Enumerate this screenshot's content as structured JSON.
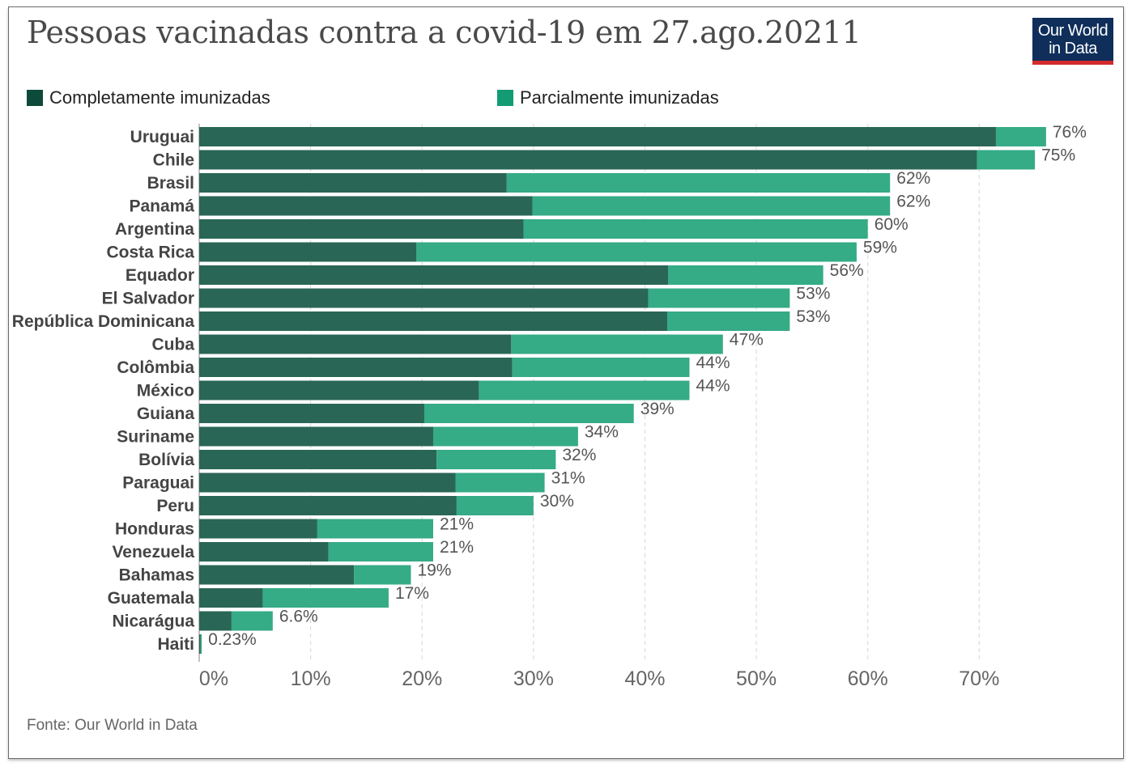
{
  "title": "Pessoas vacinadas contra a covid-19 em 27.ago.20211",
  "logo": {
    "line1": "Our World",
    "line2": "in Data"
  },
  "source": "Fonte: Our World in Data",
  "colors": {
    "fully": "#2a6655",
    "partially": "#35ab86",
    "legend_fully": "#0c4a3a",
    "legend_partially": "#139b74",
    "logo_bg": "#0f2e5a",
    "logo_bar": "#d42b2b"
  },
  "legend": {
    "position": "top",
    "fully": "Completamente imunizadas",
    "partially": "Parcialmente imunizadas"
  },
  "chart_data": {
    "type": "bar",
    "orientation": "horizontal",
    "stacked": true,
    "categories": [
      "Uruguai",
      "Chile",
      "Brasil",
      "Panamá",
      "Argentina",
      "Costa Rica",
      "Equador",
      "El Salvador",
      "República Dominicana",
      "Cuba",
      "Colômbia",
      "México",
      "Guiana",
      "Suriname",
      "Bolívia",
      "Paraguai",
      "Peru",
      "Honduras",
      "Venezuela",
      "Bahamas",
      "Guatemala",
      "Nicarágua",
      "Haiti"
    ],
    "series": [
      {
        "name": "Completamente imunizadas",
        "values": [
          71.5,
          69.8,
          27.6,
          29.9,
          29.1,
          19.5,
          42.1,
          40.3,
          42.0,
          28.0,
          28.1,
          25.1,
          20.2,
          21.0,
          21.3,
          23.0,
          23.1,
          10.6,
          11.6,
          13.9,
          5.7,
          2.9,
          0.13
        ]
      },
      {
        "name": "Parcialmente imunizadas",
        "values": [
          4.5,
          5.2,
          34.4,
          32.1,
          30.9,
          39.5,
          13.9,
          12.7,
          11.0,
          19.0,
          15.9,
          18.9,
          18.8,
          13.0,
          10.7,
          8.0,
          6.9,
          10.4,
          9.4,
          5.1,
          11.3,
          3.7,
          0.1
        ]
      }
    ],
    "data_labels": [
      "76%",
      "75%",
      "62%",
      "62%",
      "60%",
      "59%",
      "56%",
      "53%",
      "53%",
      "47%",
      "44%",
      "44%",
      "39%",
      "34%",
      "32%",
      "31%",
      "30%",
      "21%",
      "21%",
      "19%",
      "17%",
      "6.6%",
      "0.23%"
    ],
    "xlim": [
      0,
      76.3
    ],
    "xticks": [
      0,
      10,
      20,
      30,
      40,
      50,
      60,
      70
    ],
    "xtick_labels": [
      "0%",
      "10%",
      "20%",
      "30%",
      "40%",
      "50%",
      "60%",
      "70%"
    ],
    "grid": "vertical dashed"
  }
}
